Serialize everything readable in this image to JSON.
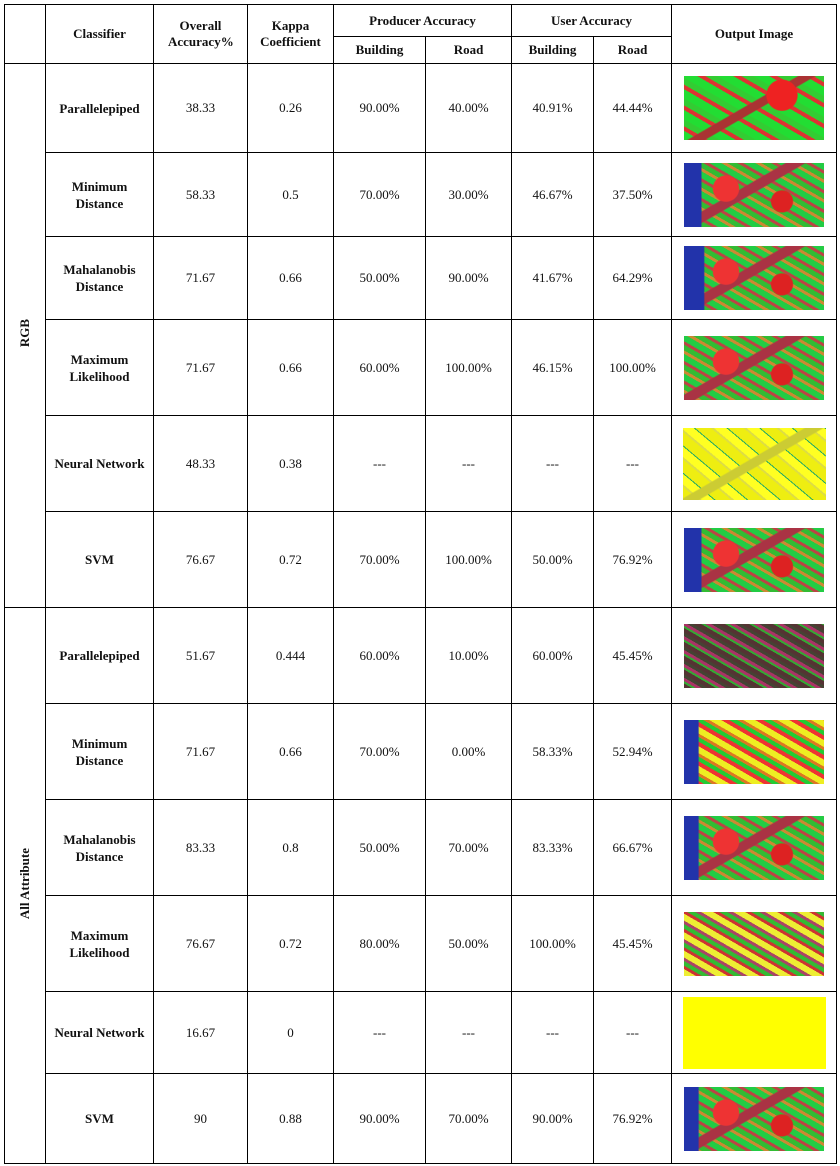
{
  "header": {
    "classifier": "Classifier",
    "overall": "Overall Accuracy%",
    "kappa": "Kappa Coefficient",
    "producer": "Producer Accuracy",
    "user": "User Accuracy",
    "output": "Output Image",
    "sub": [
      "Building",
      "Road",
      "Building",
      "Road"
    ]
  },
  "groups": [
    {
      "name": "RGB",
      "rows": [
        [
          "Parallelepiped",
          "38.33",
          "0.26",
          "90.00%",
          "40.00%",
          "40.91%",
          "44.44%"
        ],
        [
          "Minimum Distance",
          "58.33",
          "0.5",
          "70.00%",
          "30.00%",
          "46.67%",
          "37.50%"
        ],
        [
          "Mahalanobis Distance",
          "71.67",
          "0.66",
          "50.00%",
          "90.00%",
          "41.67%",
          "64.29%"
        ],
        [
          "Maximum Likelihood",
          "71.67",
          "0.66",
          "60.00%",
          "100.00%",
          "46.15%",
          "100.00%"
        ],
        [
          "Neural Network",
          "48.33",
          "0.38",
          "---",
          "---",
          "---",
          "---"
        ],
        [
          "SVM",
          "76.67",
          "0.72",
          "70.00%",
          "100.00%",
          "50.00%",
          "76.92%"
        ]
      ]
    },
    {
      "name": "All Attribute",
      "rows": [
        [
          "Parallelepiped",
          "51.67",
          "0.444",
          "60.00%",
          "10.00%",
          "60.00%",
          "45.45%"
        ],
        [
          "Minimum Distance",
          "71.67",
          "0.66",
          "70.00%",
          "0.00%",
          "58.33%",
          "52.94%"
        ],
        [
          "Mahalanobis Distance",
          "83.33",
          "0.8",
          "50.00%",
          "70.00%",
          "83.33%",
          "66.67%"
        ],
        [
          "Maximum Likelihood",
          "76.67",
          "0.72",
          "80.00%",
          "50.00%",
          "100.00%",
          "45.45%"
        ],
        [
          "Neural Network",
          "16.67",
          "0",
          "---",
          "---",
          "---",
          "---"
        ],
        [
          "SVM",
          "90",
          "0.88",
          "90.00%",
          "70.00%",
          "90.00%",
          "76.92%"
        ]
      ]
    }
  ]
}
